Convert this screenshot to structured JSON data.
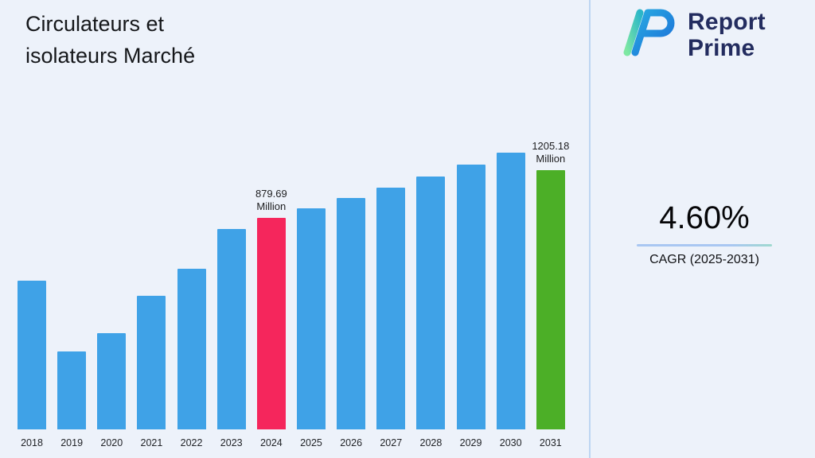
{
  "header": {
    "title_line1": "Circulateurs et",
    "title_line2": "isolateurs Marché"
  },
  "logo": {
    "text_line1": "Report",
    "text_line2": "Prime",
    "navy": "#232c5f"
  },
  "cagr": {
    "value": "4.60%",
    "label": "CAGR (2025-2031)"
  },
  "theme": {
    "background": "#edf2fa",
    "divider": "#bdd6f2",
    "underline_blue": "#a9c7f2",
    "underline_green": "#9fd9cf"
  },
  "chart_data": {
    "type": "bar",
    "title": "Circulateurs et isolateurs Marché",
    "xlabel": "",
    "ylabel": "",
    "unit": "Million",
    "ylim": [
      0,
      1250
    ],
    "grid": false,
    "legend": "none",
    "categories": [
      "2018",
      "2019",
      "2020",
      "2021",
      "2022",
      "2023",
      "2024",
      "2025",
      "2026",
      "2027",
      "2028",
      "2029",
      "2030",
      "2031"
    ],
    "values": [
      620,
      325,
      400,
      555,
      670,
      835,
      879.69,
      920.2,
      962.5,
      1006.8,
      1053.1,
      1101.5,
      1152.2,
      1205.18
    ],
    "colors": {
      "default": "#3fa2e7",
      "2024": "#f5265c",
      "2031": "#4caf27"
    },
    "annotations": [
      {
        "category": "2024",
        "lines": [
          "879.69",
          "Million"
        ]
      },
      {
        "category": "2031",
        "lines": [
          "1205.18",
          "Million"
        ]
      }
    ]
  }
}
